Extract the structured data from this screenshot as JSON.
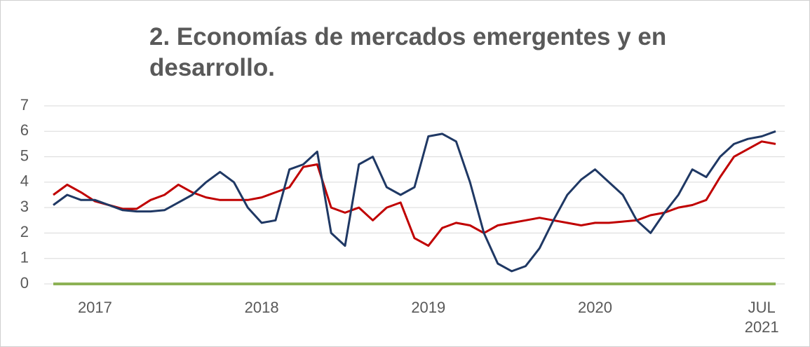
{
  "chart_data": {
    "type": "line",
    "title": "2. Economías de mercados emergentes y en desarrollo.",
    "categories": [
      null,
      null,
      null,
      "2017",
      null,
      null,
      null,
      null,
      null,
      null,
      null,
      null,
      null,
      null,
      null,
      "2018",
      null,
      null,
      null,
      null,
      null,
      null,
      null,
      null,
      null,
      null,
      null,
      "2019",
      null,
      null,
      null,
      null,
      null,
      null,
      null,
      null,
      null,
      null,
      null,
      "2020",
      null,
      null,
      null,
      null,
      null,
      null,
      null,
      null,
      null,
      null,
      null,
      "JUL 2021",
      null
    ],
    "series": [
      {
        "color": "#1f3864",
        "values": [
          3.1,
          3.5,
          3.3,
          3.3,
          3.1,
          2.9,
          2.85,
          2.85,
          2.9,
          3.2,
          3.5,
          4.0,
          4.4,
          4.0,
          3.0,
          2.4,
          2.5,
          4.5,
          4.7,
          5.2,
          2.0,
          1.5,
          4.7,
          5.0,
          3.8,
          3.5,
          3.8,
          5.8,
          5.9,
          5.6,
          4.0,
          2.0,
          0.8,
          0.5,
          0.7,
          1.4,
          2.5,
          3.5,
          4.1,
          4.5,
          4.0,
          3.5,
          2.5,
          2.0,
          2.8,
          3.5,
          4.5,
          4.2,
          5.0,
          5.5,
          5.7,
          5.8,
          6.0
        ]
      },
      {
        "color": "#c00000",
        "values": [
          3.5,
          3.9,
          3.6,
          3.25,
          3.1,
          2.95,
          2.95,
          3.3,
          3.5,
          3.9,
          3.6,
          3.4,
          3.3,
          3.3,
          3.3,
          3.4,
          3.6,
          3.8,
          4.6,
          4.7,
          3.0,
          2.8,
          3.0,
          2.5,
          3.0,
          3.2,
          1.8,
          1.5,
          2.2,
          2.4,
          2.3,
          2.0,
          2.3,
          2.4,
          2.5,
          2.6,
          2.5,
          2.4,
          2.3,
          2.4,
          2.4,
          2.45,
          2.5,
          2.7,
          2.8,
          3.0,
          3.1,
          3.3,
          4.2,
          5.0,
          5.3,
          5.6,
          5.5
        ]
      },
      {
        "color": "#8db255",
        "values": [
          0,
          0,
          0,
          0,
          0,
          0,
          0,
          0,
          0,
          0,
          0,
          0,
          0,
          0,
          0,
          0,
          0,
          0,
          0,
          0,
          0,
          0,
          0,
          0,
          0,
          0,
          0,
          0,
          0,
          0,
          0,
          0,
          0,
          0,
          0,
          0,
          0,
          0,
          0,
          0,
          0,
          0,
          0,
          0,
          0,
          0,
          0,
          0,
          0,
          0,
          0,
          0,
          0
        ]
      }
    ],
    "ylim": [
      0,
      7
    ],
    "yticks": [
      0,
      1,
      2,
      3,
      4,
      5,
      6,
      7
    ],
    "grid": true
  }
}
